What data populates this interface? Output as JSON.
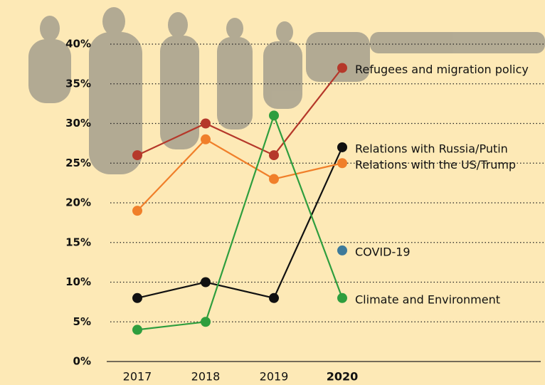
{
  "chart_data": {
    "type": "line",
    "categories": [
      "2017",
      "2018",
      "2019",
      "2020"
    ],
    "series": [
      {
        "name": "Refugees and migration policy",
        "color": "#b5382a",
        "values": [
          26,
          30,
          26,
          37
        ]
      },
      {
        "name": "Relations with Russia/Putin",
        "color": "#111111",
        "values": [
          8,
          10,
          8,
          27
        ]
      },
      {
        "name": "Relations with the US/Trump",
        "color": "#f07f2a",
        "values": [
          19,
          28,
          23,
          25
        ]
      },
      {
        "name": "COVID-19",
        "color": "#3d7a9a",
        "values": [
          null,
          null,
          null,
          14
        ]
      },
      {
        "name": "Climate and Environment",
        "color": "#2e9e3e",
        "values": [
          4,
          5,
          31,
          8
        ]
      }
    ],
    "ylim": [
      0,
      40
    ],
    "yticks": [
      {
        "value": 0,
        "label": "0%"
      },
      {
        "value": 5,
        "label": "5%"
      },
      {
        "value": 10,
        "label": "10%"
      },
      {
        "value": 15,
        "label": "15%"
      },
      {
        "value": 20,
        "label": "20%"
      },
      {
        "value": 25,
        "label": "25%"
      },
      {
        "value": 30,
        "label": "30%"
      },
      {
        "value": 35,
        "label": "35%"
      },
      {
        "value": 40,
        "label": "40%"
      }
    ],
    "grid": true
  }
}
